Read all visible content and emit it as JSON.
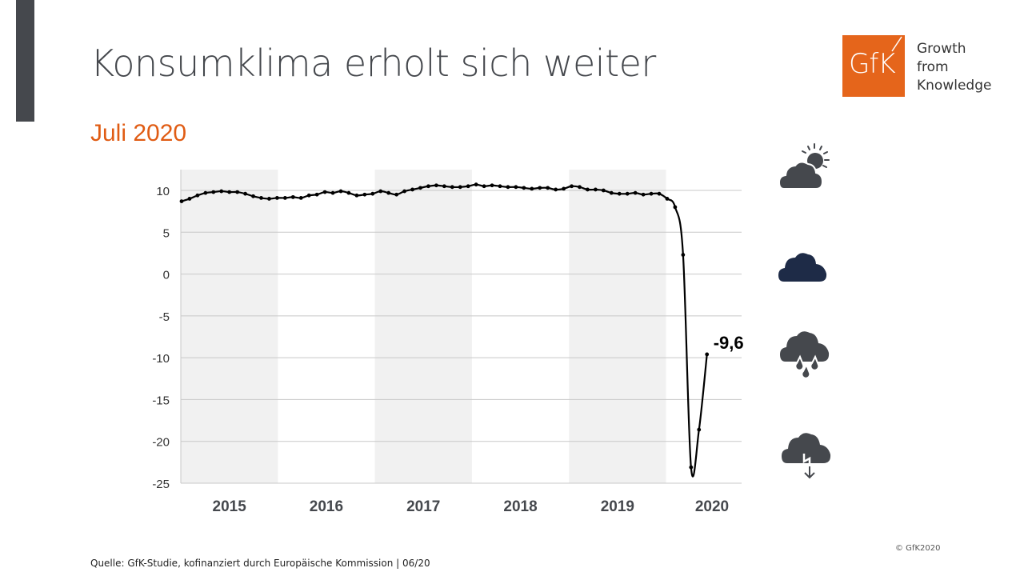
{
  "slide": {
    "title": "Konsumklima erholt sich weiter",
    "subtitle": "Juli 2020",
    "source": "Quelle: GfK-Studie, kofinanziert durch Europäische Kommission | 06/20",
    "copyright": "© GfK2020"
  },
  "logo": {
    "mark": "GfK",
    "tagline": [
      "Growth",
      "from",
      "Knowledge"
    ],
    "color": "#e5651b"
  },
  "icons": [
    {
      "name": "sun-cloud-icon",
      "color": "#45484d"
    },
    {
      "name": "cloud-icon",
      "color": "#1e2b47"
    },
    {
      "name": "rain-cloud-icon",
      "color": "#45484d"
    },
    {
      "name": "thunder-cloud-down-icon",
      "color": "#45484d"
    }
  ],
  "chart_data": {
    "type": "line",
    "title": "Konsumklima erholt sich weiter",
    "subtitle": "Juli 2020",
    "xlabel": "",
    "ylabel": "",
    "ylim": [
      -25,
      12
    ],
    "yticks": [
      10,
      5,
      0,
      -5,
      -10,
      -15,
      -20,
      -25
    ],
    "year_labels": [
      "2015",
      "2016",
      "2017",
      "2018",
      "2019",
      "2020"
    ],
    "shaded_years": [
      "2015",
      "2017",
      "2019"
    ],
    "grid": true,
    "annotation": {
      "label": "-9,6",
      "x": "2020-07",
      "y": -9.6
    },
    "series": [
      {
        "name": "Konsumklima",
        "color": "#000000",
        "x_start": "2015-01",
        "frequency": "monthly",
        "values": [
          8.7,
          9.0,
          9.4,
          9.7,
          9.8,
          9.9,
          9.8,
          9.8,
          9.6,
          9.3,
          9.1,
          9.0,
          9.1,
          9.1,
          9.2,
          9.1,
          9.4,
          9.5,
          9.8,
          9.7,
          9.9,
          9.7,
          9.4,
          9.5,
          9.6,
          9.9,
          9.7,
          9.5,
          9.9,
          10.1,
          10.3,
          10.5,
          10.6,
          10.5,
          10.4,
          10.4,
          10.5,
          10.7,
          10.5,
          10.6,
          10.5,
          10.4,
          10.4,
          10.3,
          10.2,
          10.3,
          10.3,
          10.1,
          10.2,
          10.5,
          10.4,
          10.1,
          10.1,
          10.0,
          9.7,
          9.6,
          9.6,
          9.7,
          9.5,
          9.6,
          9.6,
          9.0,
          8.0,
          2.3,
          -23.1,
          -18.6,
          -9.6
        ]
      }
    ]
  }
}
